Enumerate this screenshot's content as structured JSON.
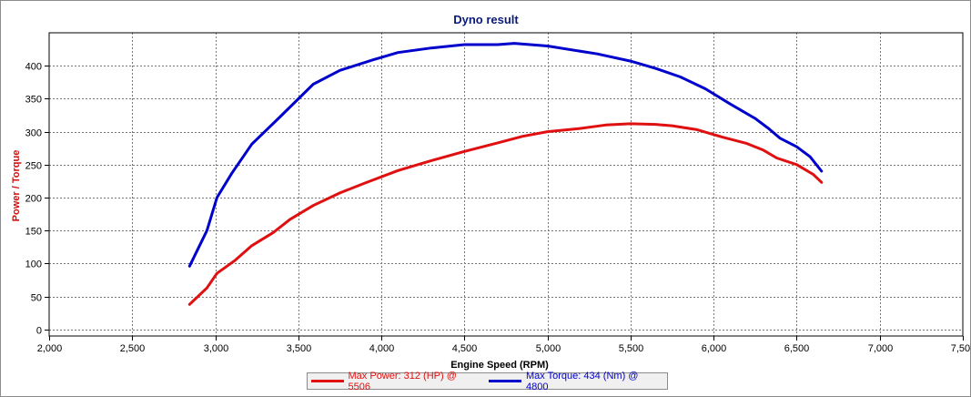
{
  "chart_data": {
    "type": "line",
    "title": "Dyno result",
    "xlabel": "Engine Speed (RPM)",
    "ylabel": "Power / Torque",
    "xlim": [
      2000,
      7500
    ],
    "ylim": [
      -10,
      450
    ],
    "x_ticks": [
      2000,
      2500,
      3000,
      3500,
      4000,
      4500,
      5000,
      5500,
      6000,
      6500,
      7000,
      7500
    ],
    "x_tick_labels": [
      "2,000",
      "2,500",
      "3,000",
      "3,500",
      "4,000",
      "4,500",
      "5,000",
      "5,500",
      "6,000",
      "6,500",
      "7,000",
      "7,500"
    ],
    "y_ticks": [
      0,
      50,
      100,
      150,
      200,
      250,
      300,
      350,
      400
    ],
    "y_tick_labels": [
      "0",
      "50",
      "100",
      "150",
      "200",
      "250",
      "300",
      "350",
      "400"
    ],
    "grid": true,
    "legend_position": "bottom-center",
    "series": [
      {
        "name": "Max Power: 312 (HP) @ 5506",
        "color": "#e01010",
        "points": [
          [
            2845,
            38
          ],
          [
            2950,
            63
          ],
          [
            3010,
            85
          ],
          [
            3120,
            105
          ],
          [
            3220,
            127
          ],
          [
            3350,
            147
          ],
          [
            3450,
            167
          ],
          [
            3590,
            188
          ],
          [
            3750,
            207
          ],
          [
            3900,
            222
          ],
          [
            4100,
            241
          ],
          [
            4300,
            256
          ],
          [
            4500,
            270
          ],
          [
            4700,
            283
          ],
          [
            4850,
            293
          ],
          [
            5000,
            300
          ],
          [
            5200,
            305
          ],
          [
            5350,
            310
          ],
          [
            5500,
            312
          ],
          [
            5650,
            311
          ],
          [
            5750,
            309
          ],
          [
            5900,
            303
          ],
          [
            6050,
            292
          ],
          [
            6200,
            282
          ],
          [
            6300,
            272
          ],
          [
            6380,
            260
          ],
          [
            6500,
            250
          ],
          [
            6600,
            235
          ],
          [
            6650,
            223
          ]
        ]
      },
      {
        "name": "Max Torque: 434 (Nm) @ 4800",
        "color": "#0000cc",
        "points": [
          [
            2845,
            96
          ],
          [
            2950,
            150
          ],
          [
            3010,
            200
          ],
          [
            3100,
            237
          ],
          [
            3220,
            281
          ],
          [
            3400,
            325
          ],
          [
            3590,
            372
          ],
          [
            3750,
            393
          ],
          [
            3950,
            409
          ],
          [
            4100,
            420
          ],
          [
            4300,
            427
          ],
          [
            4500,
            432
          ],
          [
            4700,
            432
          ],
          [
            4800,
            434
          ],
          [
            5000,
            430
          ],
          [
            5300,
            418
          ],
          [
            5500,
            407
          ],
          [
            5650,
            396
          ],
          [
            5800,
            383
          ],
          [
            5950,
            365
          ],
          [
            6100,
            342
          ],
          [
            6250,
            320
          ],
          [
            6330,
            305
          ],
          [
            6400,
            290
          ],
          [
            6500,
            277
          ],
          [
            6580,
            262
          ],
          [
            6650,
            240
          ]
        ]
      }
    ]
  }
}
